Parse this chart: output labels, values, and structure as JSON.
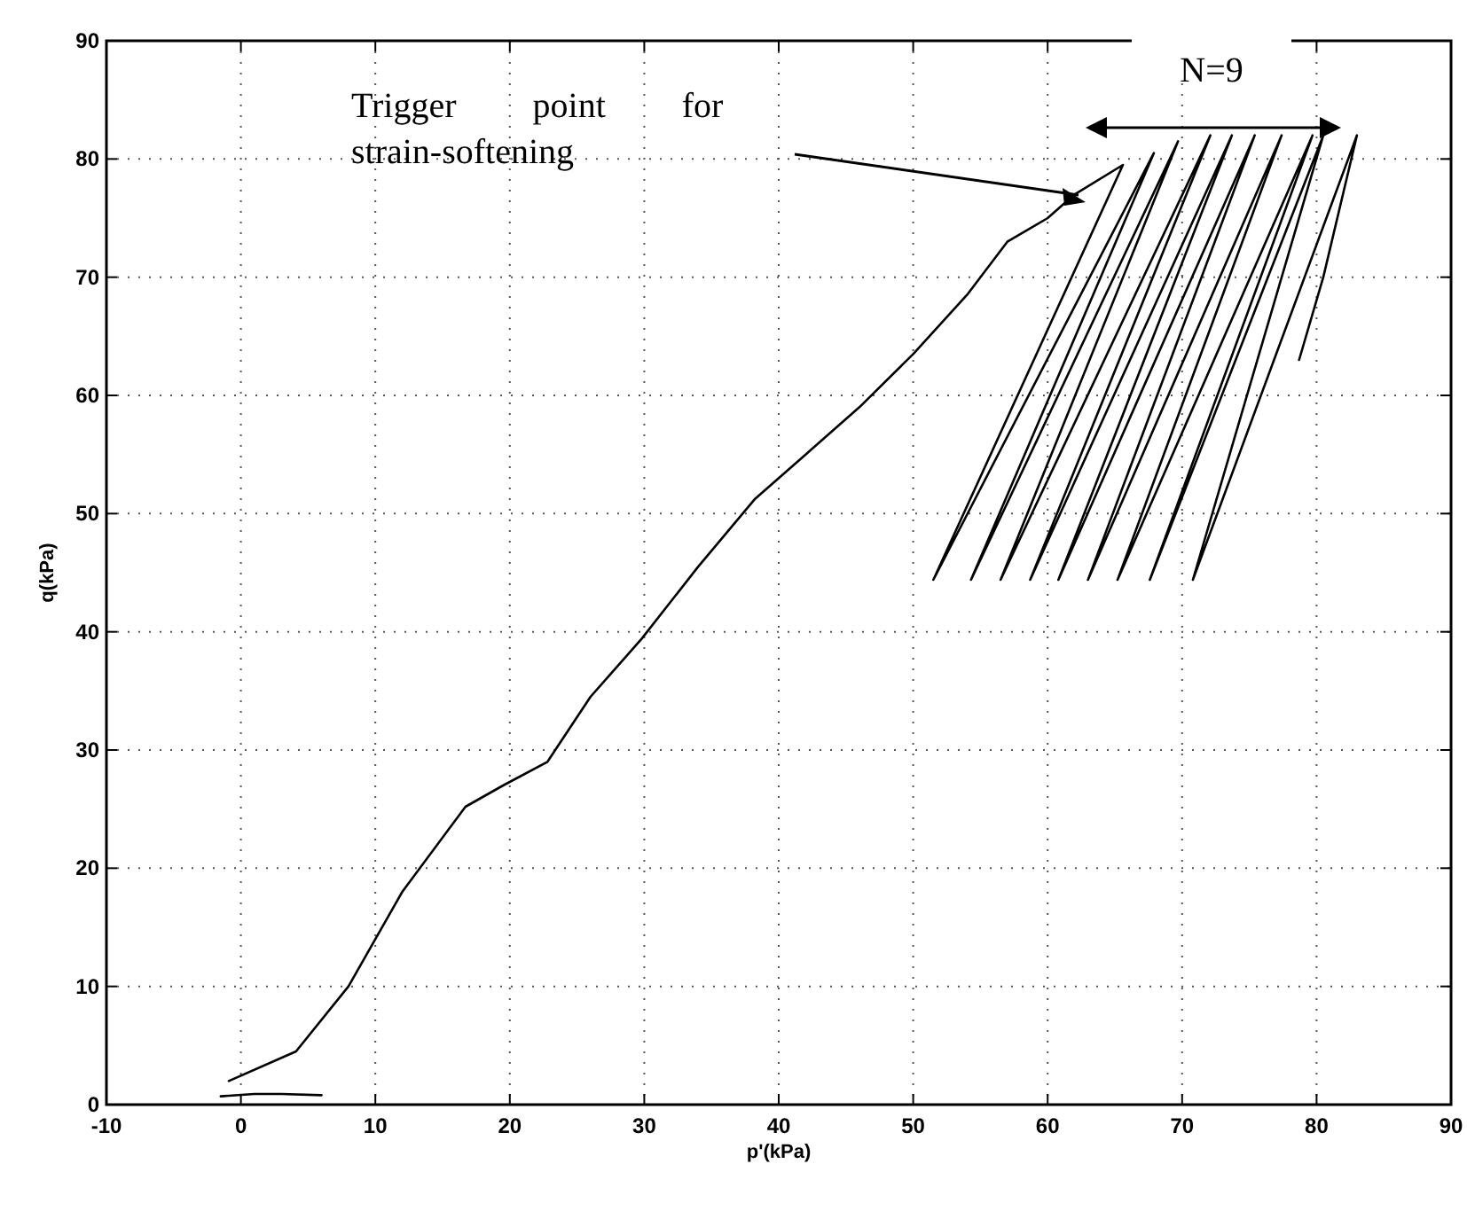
{
  "chart_data": {
    "type": "line",
    "xlabel": "p'(kPa)",
    "ylabel": "q(kPa)",
    "xlim": [
      -10,
      90
    ],
    "xticks": [
      -10,
      0,
      10,
      20,
      30,
      40,
      50,
      60,
      70,
      80,
      90
    ],
    "ylim": [
      0,
      90
    ],
    "yticks": [
      0,
      10,
      20,
      30,
      40,
      50,
      60,
      70,
      80,
      90
    ],
    "grid": true,
    "line_style": "solid",
    "series": [
      {
        "color": "#000000",
        "x": [
          -1.5,
          1,
          3,
          6
        ],
        "values": [
          0.7,
          0.9,
          0.9,
          0.8
        ]
      },
      {
        "color": "#000000",
        "x": [
          -0.9,
          4.1,
          8,
          12,
          16.7,
          19.5,
          22.8,
          26,
          29.8,
          34,
          38.2,
          42,
          46,
          50,
          54,
          57,
          60,
          62,
          65.6,
          51.5,
          67.9,
          54.3,
          69.7,
          56.5,
          72.1,
          58.7,
          73.7,
          60.8,
          75.4,
          63,
          77.4,
          65.2,
          79.7,
          67.6,
          80.5,
          70.8,
          83,
          80.5,
          78.7
        ],
        "values": [
          2,
          4.5,
          10,
          18,
          25.2,
          27,
          29,
          34.5,
          39.4,
          45.5,
          51.2,
          55,
          59,
          63.5,
          68.5,
          73,
          75,
          77,
          79.5,
          44.4,
          80.5,
          44.4,
          81.5,
          44.4,
          82,
          44.4,
          82,
          44.4,
          82,
          44.4,
          82,
          44.4,
          82,
          44.4,
          82,
          44.4,
          82,
          70,
          63
        ]
      }
    ],
    "annotations": [
      "Trigger point for strain-softening",
      "N=9"
    ]
  }
}
